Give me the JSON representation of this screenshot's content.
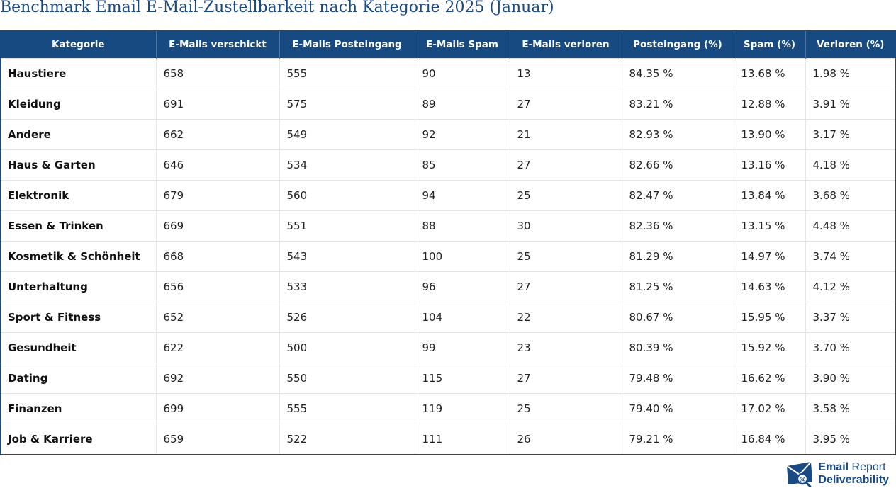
{
  "title": "Benchmark Email E-Mail-Zustellbarkeit nach Kategorie 2025 (Januar)",
  "table": {
    "headers": [
      "Kategorie",
      "E-Mails verschickt",
      "E-Mails Posteingang",
      "E-Mails Spam",
      "E-Mails verloren",
      "Posteingang (%)",
      "Spam (%)",
      "Verloren (%)"
    ],
    "rows": [
      [
        "Haustiere",
        "658",
        "555",
        "90",
        "13",
        "84.35 %",
        "13.68 %",
        "1.98 %"
      ],
      [
        "Kleidung",
        "691",
        "575",
        "89",
        "27",
        "83.21 %",
        "12.88 %",
        "3.91 %"
      ],
      [
        "Andere",
        "662",
        "549",
        "92",
        "21",
        "82.93 %",
        "13.90 %",
        "3.17 %"
      ],
      [
        "Haus & Garten",
        "646",
        "534",
        "85",
        "27",
        "82.66 %",
        "13.16 %",
        "4.18 %"
      ],
      [
        "Elektronik",
        "679",
        "560",
        "94",
        "25",
        "82.47 %",
        "13.84 %",
        "3.68 %"
      ],
      [
        "Essen & Trinken",
        "669",
        "551",
        "88",
        "30",
        "82.36 %",
        "13.15 %",
        "4.48 %"
      ],
      [
        "Kosmetik & Schönheit",
        "668",
        "543",
        "100",
        "25",
        "81.29 %",
        "14.97 %",
        "3.74 %"
      ],
      [
        "Unterhaltung",
        "656",
        "533",
        "96",
        "27",
        "81.25 %",
        "14.63 %",
        "4.12 %"
      ],
      [
        "Sport & Fitness",
        "652",
        "526",
        "104",
        "22",
        "80.67 %",
        "15.95 %",
        "3.37 %"
      ],
      [
        "Gesundheit",
        "622",
        "500",
        "99",
        "23",
        "80.39 %",
        "15.92 %",
        "3.70 %"
      ],
      [
        "Dating",
        "692",
        "550",
        "115",
        "27",
        "79.48 %",
        "16.62 %",
        "3.90 %"
      ],
      [
        "Finanzen",
        "699",
        "555",
        "119",
        "25",
        "79.40 %",
        "17.02 %",
        "3.58 %"
      ],
      [
        "Job & Karriere",
        "659",
        "522",
        "111",
        "26",
        "79.21 %",
        "16.84 %",
        "3.95 %"
      ]
    ]
  },
  "brand": {
    "line1_bold": "Email",
    "line1_rest": " Report",
    "line2": "Deliverability",
    "logo_icon": "envelope-at-magnifier-icon"
  },
  "colors": {
    "header_bg": "#184a82",
    "title": "#1a4a84",
    "brand": "#1a4a84"
  }
}
